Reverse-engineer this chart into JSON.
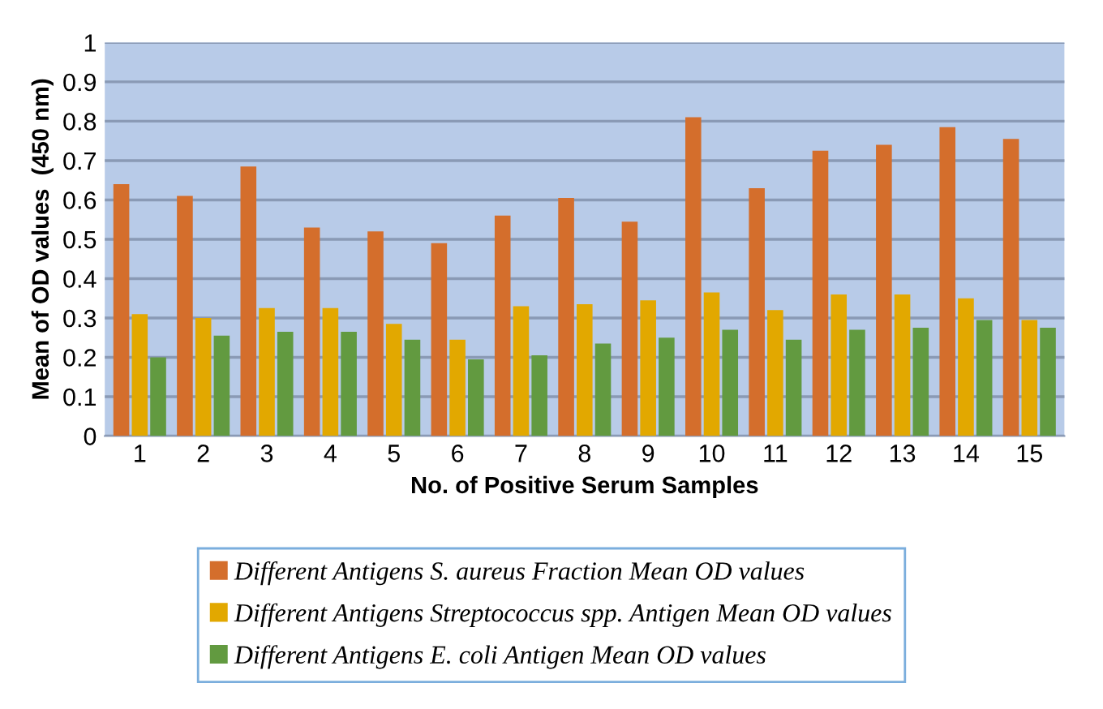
{
  "chart_data": {
    "type": "bar",
    "xlabel": "No. of Positive Serum Samples",
    "ylabel": "Mean of OD values  (450 nm)",
    "categories": [
      "1",
      "2",
      "3",
      "4",
      "5",
      "6",
      "7",
      "8",
      "9",
      "10",
      "11",
      "12",
      "13",
      "14",
      "15"
    ],
    "series": [
      {
        "name": "Different Antigens S. aureus Fraction Mean OD values",
        "color": "#d46e2c",
        "values": [
          0.64,
          0.61,
          0.685,
          0.53,
          0.52,
          0.49,
          0.56,
          0.605,
          0.545,
          0.81,
          0.63,
          0.725,
          0.74,
          0.785,
          0.755
        ]
      },
      {
        "name": "Different Antigens Streptococcus spp. Antigen Mean OD values",
        "color": "#e2a800",
        "values": [
          0.31,
          0.3,
          0.325,
          0.325,
          0.285,
          0.245,
          0.33,
          0.335,
          0.345,
          0.365,
          0.32,
          0.36,
          0.36,
          0.35,
          0.295
        ]
      },
      {
        "name": "Different Antigens E. coli Antigen Mean OD values",
        "color": "#629a40",
        "values": [
          0.2,
          0.255,
          0.265,
          0.265,
          0.245,
          0.195,
          0.205,
          0.235,
          0.25,
          0.27,
          0.245,
          0.27,
          0.275,
          0.295,
          0.275
        ]
      }
    ],
    "ylim": [
      0,
      1
    ],
    "yticks": [
      0,
      0.1,
      0.2,
      0.3,
      0.4,
      0.5,
      0.6,
      0.7,
      0.8,
      0.9,
      1
    ],
    "grid": "y",
    "legend": "bottom"
  }
}
